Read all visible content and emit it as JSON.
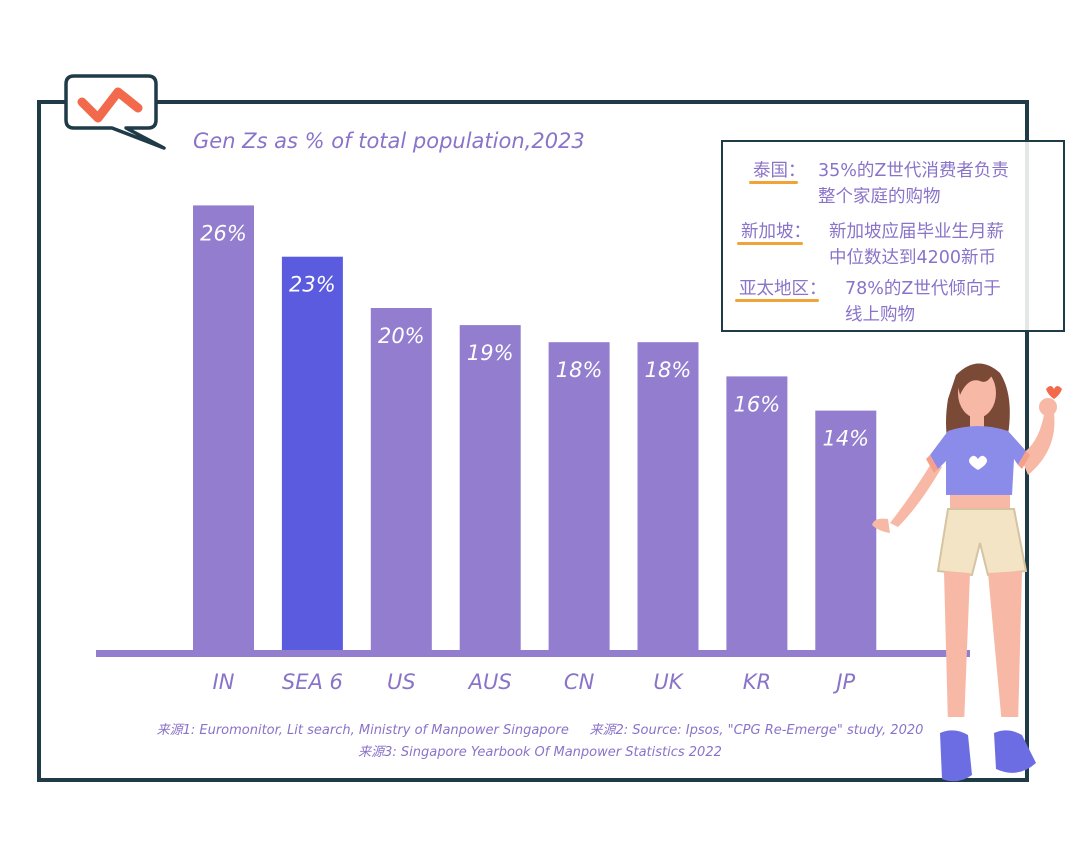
{
  "chart_data": {
    "type": "bar",
    "title": "Gen Zs as % of total population,2023",
    "categories": [
      "IN",
      "SEA 6",
      "US",
      "AUS",
      "CN",
      "UK",
      "KR",
      "JP"
    ],
    "values": [
      26,
      23,
      20,
      19,
      18,
      18,
      16,
      14
    ],
    "value_labels": [
      "26%",
      "23%",
      "20%",
      "19%",
      "18%",
      "18%",
      "16%",
      "14%"
    ],
    "highlight_category": "SEA 6",
    "colors": {
      "bar": "#937dcf",
      "highlight": "#5b5be0",
      "axis": "#937dcf",
      "text": "#8a73c9",
      "frame": "#1f3b47",
      "accent": "#f26a4b",
      "underline": "#f1a338"
    },
    "ylim": [
      0,
      30
    ],
    "xlabel": "",
    "ylabel": ""
  },
  "info_box": {
    "rows": [
      {
        "key": "泰国：",
        "lines": [
          "35%的Z世代消费者负责",
          "整个家庭的购物"
        ]
      },
      {
        "key": "新加坡：",
        "lines": [
          "新加坡应届毕业生月薪",
          "中位数达到4200新币"
        ]
      },
      {
        "key": "亚太地区：",
        "lines": [
          "78%的Z世代倾向于",
          "线上购物"
        ]
      }
    ]
  },
  "sources": {
    "line1": "来源1: Euromonitor, Lit search, Ministry of Manpower Singapore     来源2: Source: Ipsos, \"CPG Re-Emerge\" study, 2020",
    "line2": "来源3: Singapore Yearbook Of Manpower Statistics 2022"
  }
}
